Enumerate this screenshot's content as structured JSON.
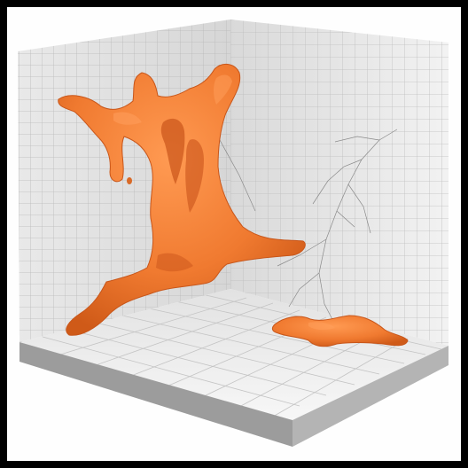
{
  "scene": {
    "subject": "orange-blob-sculpture-in-tiled-room-corner",
    "colors": {
      "border": "#000000",
      "background": "#fefefe",
      "wall_left": "#e4e4e4",
      "wall_right": "#ececec",
      "floor": "#f3f3f3",
      "grid_line": "#b8b8b8",
      "blob_orange": "#f07a30",
      "blob_shadow": "#d35e1a",
      "blob_highlight": "#ff9a52",
      "base_side": "#9a9a9a"
    }
  }
}
